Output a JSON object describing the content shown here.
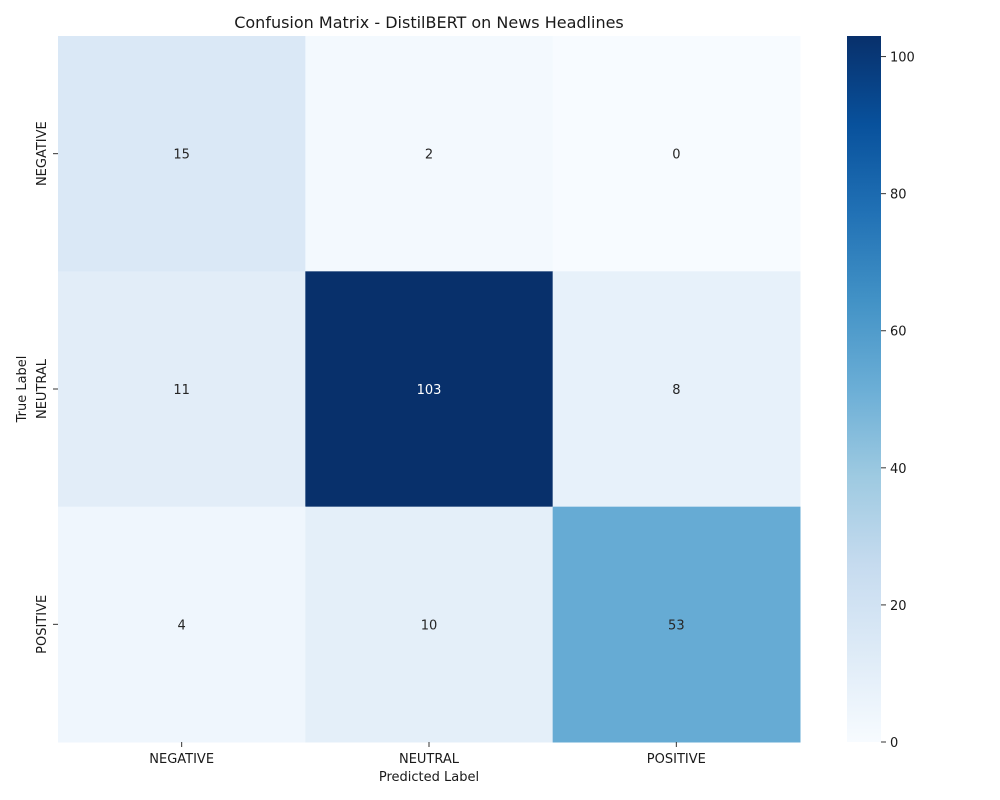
{
  "chart_data": {
    "type": "heatmap",
    "title": "Confusion Matrix - DistilBERT on News Headlines",
    "xlabel": "Predicted Label",
    "ylabel": "True Label",
    "x_categories": [
      "NEGATIVE",
      "NEUTRAL",
      "POSITIVE"
    ],
    "y_categories": [
      "NEGATIVE",
      "NEUTRAL",
      "POSITIVE"
    ],
    "values": [
      [
        15,
        2,
        0
      ],
      [
        11,
        103,
        8
      ],
      [
        4,
        10,
        53
      ]
    ],
    "colormap": "Blues",
    "colorbar": {
      "range": [
        0,
        103
      ],
      "ticks": [
        0,
        20,
        40,
        60,
        80,
        100
      ],
      "tick_labels": [
        "0",
        "20",
        "40",
        "60",
        "80",
        "100"
      ]
    },
    "cell_text_colors": {
      "light": "#ffffff",
      "dark": "#262626"
    }
  }
}
